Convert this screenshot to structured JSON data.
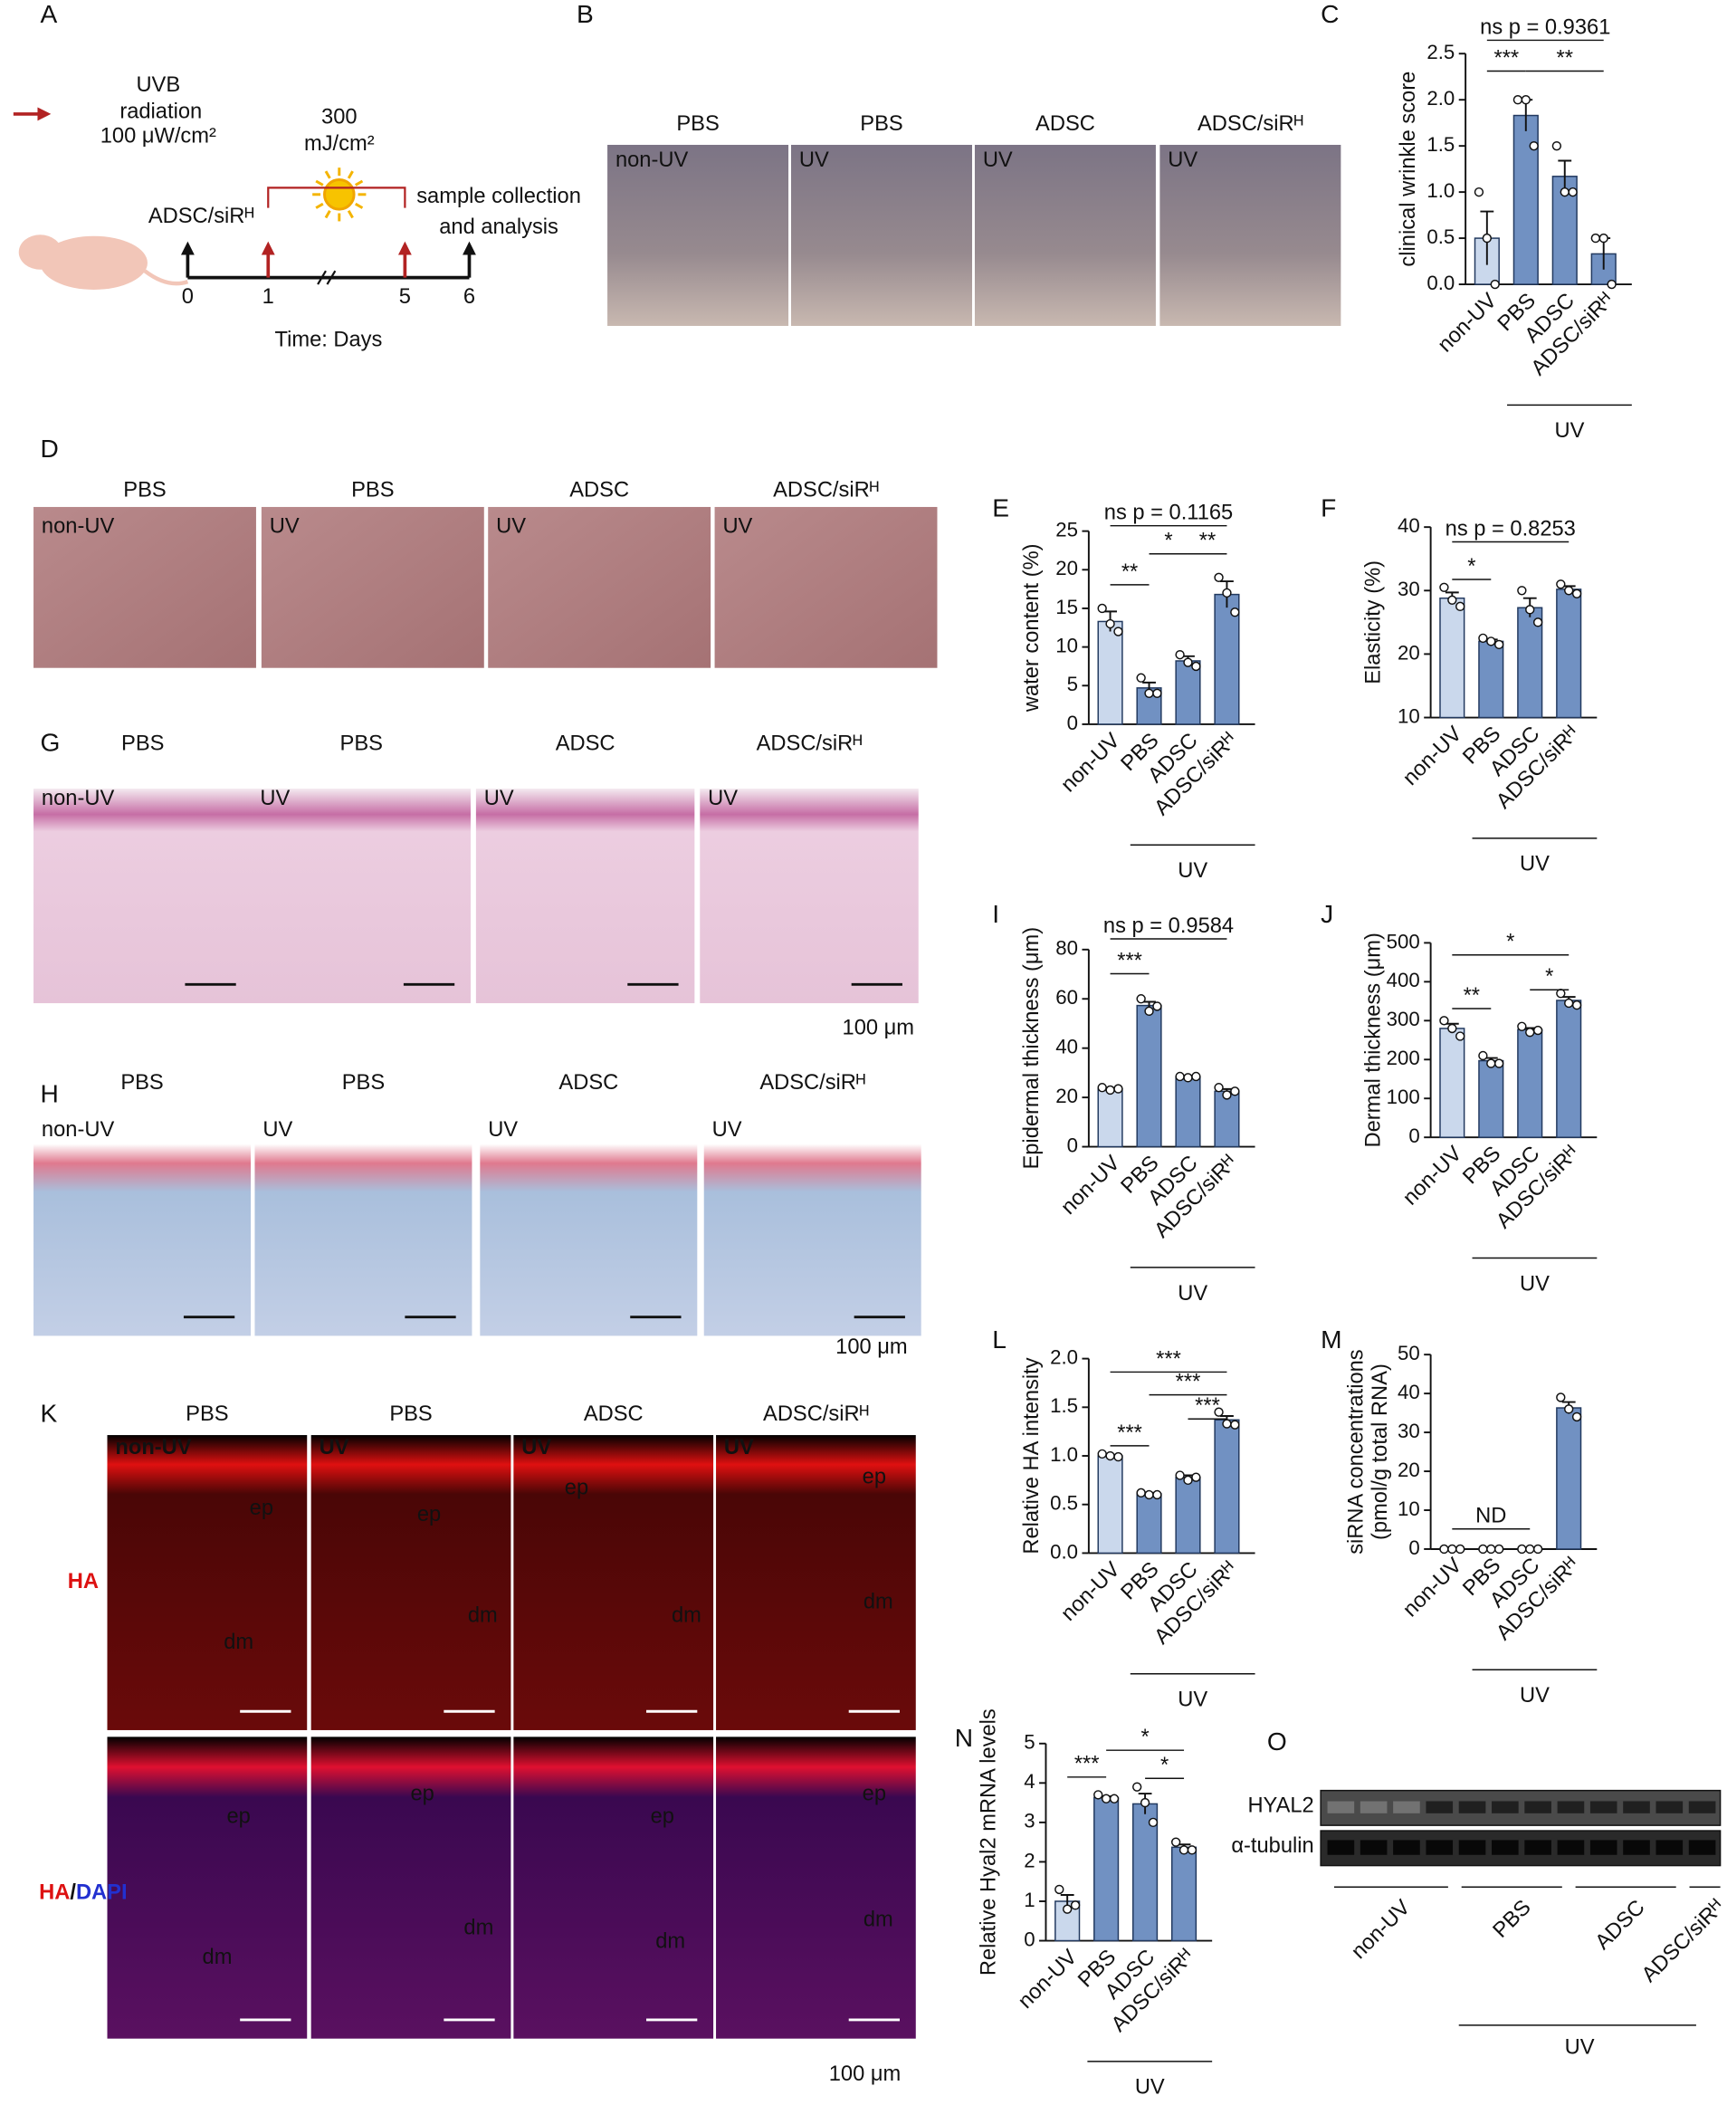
{
  "panel_letters": [
    "A",
    "B",
    "C",
    "D",
    "E",
    "F",
    "G",
    "H",
    "I",
    "J",
    "K",
    "L",
    "M",
    "N",
    "O"
  ],
  "panel_a": {
    "legend": [
      "UVB",
      "radiation",
      "100 μW/cm²"
    ],
    "dose": [
      "300",
      "mJ/cm²"
    ],
    "treatment": "ADSC/siRᴴ",
    "endpoint": [
      "sample collection",
      "and analysis"
    ],
    "days": [
      "0",
      "1",
      "5",
      "6"
    ],
    "x_label": "Time: Days"
  },
  "photo_panels": [
    {
      "headers": [
        "PBS",
        "PBS",
        "ADSC",
        "ADSC/siRᴴ"
      ],
      "tags": [
        "non-UV",
        "UV",
        "UV",
        "UV"
      ]
    },
    {
      "headers": [
        "PBS",
        "PBS",
        "ADSC",
        "ADSC/siRᴴ"
      ],
      "tags": [
        "non-UV",
        "UV",
        "UV",
        "UV"
      ]
    },
    {
      "headers": [
        "PBS",
        "PBS",
        "ADSC",
        "ADSC/siRᴴ"
      ],
      "tags": [
        "non-UV",
        "UV",
        "UV",
        "UV"
      ],
      "scale": "100 μm"
    },
    {
      "headers": [
        "PBS",
        "PBS",
        "ADSC",
        "ADSC/siRᴴ"
      ],
      "tags": [
        "non-UV",
        "UV",
        "UV",
        "UV"
      ],
      "scale": "100 μm"
    },
    {
      "headers": [
        "PBS",
        "PBS",
        "ADSC",
        "ADSC/siRᴴ"
      ],
      "tags": [
        "non-UV",
        "UV",
        "UV",
        "UV"
      ],
      "scale": "100 μm",
      "rows": [
        [
          "HA"
        ],
        [
          "HA",
          "/",
          "DAPI"
        ]
      ],
      "tissue_labels": [
        [
          [
            "ep",
            "dm"
          ],
          [
            "ep",
            "dm"
          ],
          [
            "ep",
            "dm"
          ],
          [
            "ep",
            "dm"
          ]
        ],
        [
          [
            "ep",
            "dm"
          ],
          [
            "ep",
            "dm"
          ],
          [
            "ep",
            "dm"
          ],
          [
            "ep",
            "dm"
          ]
        ]
      ]
    }
  ],
  "panel_o": {
    "rows": [
      "HYAL2",
      "α-tubulin"
    ],
    "groups": [
      "non-UV",
      "PBS",
      "ADSC",
      "ADSC/siRᴴ"
    ],
    "group_label": "UV"
  },
  "chart_data": [
    {
      "type": "bar",
      "y_label": "clinical wrinkle score",
      "categories": [
        "non-UV",
        "PBS",
        "ADSC",
        "ADSC/siRᴴ"
      ],
      "group_label": "UV",
      "values": [
        0.5,
        1.83,
        1.17,
        0.33
      ],
      "errors": [
        0.29,
        0.17,
        0.17,
        0.17
      ],
      "points": [
        [
          1,
          0.5,
          0
        ],
        [
          2,
          2,
          1.5
        ],
        [
          1.5,
          1,
          1
        ],
        [
          0.5,
          0.5,
          0
        ]
      ],
      "colors": [
        "#cad8ec",
        "#7191c2",
        "#7191c2",
        "#7191c2"
      ],
      "ylim": [
        0,
        2.5
      ],
      "yticks": [
        {
          "value": 0,
          "label": "0.0"
        },
        0.5,
        {
          "value": 1,
          "label": "1.0"
        },
        1.5,
        {
          "value": 2,
          "label": "2.0"
        },
        2.5
      ],
      "annotations": [
        "ns p = 0.9361",
        "***",
        "**"
      ]
    },
    {
      "type": "bar",
      "y_label": "water content (%)",
      "categories": [
        "non-UV",
        "PBS",
        "ADSC",
        "ADSC/siRᴴ"
      ],
      "group_label": "UV",
      "values": [
        13.3,
        4.7,
        8.2,
        16.8
      ],
      "errors": [
        1.3,
        0.7,
        0.6,
        1.7
      ],
      "points": [
        [
          15,
          13,
          12
        ],
        [
          6,
          4,
          4
        ],
        [
          9,
          8,
          7.5
        ],
        [
          19,
          17,
          14.5
        ]
      ],
      "colors": [
        "#cad8ec",
        "#7191c2",
        "#7191c2",
        "#7191c2"
      ],
      "ylim": [
        0,
        25
      ],
      "yticks": [
        0,
        5,
        10,
        15,
        20,
        25
      ],
      "annotations": [
        "ns p = 0.1165",
        "**",
        "*",
        "**"
      ]
    },
    {
      "type": "bar",
      "y_label": "Elasticity (%)",
      "categories": [
        "non-UV",
        "PBS",
        "ADSC",
        "ADSC/siRᴴ"
      ],
      "group_label": "UV",
      "values": [
        28.8,
        22,
        27.3,
        30.2
      ],
      "errors": [
        0.9,
        0.3,
        1.5,
        0.5
      ],
      "points": [
        [
          30.5,
          28.5,
          27.5
        ],
        [
          22.5,
          22,
          21.5
        ],
        [
          30,
          27,
          25
        ],
        [
          31,
          30,
          29.5
        ]
      ],
      "colors": [
        "#cad8ec",
        "#7191c2",
        "#7191c2",
        "#7191c2"
      ],
      "ylim": [
        10,
        40
      ],
      "yticks": [
        10,
        20,
        30,
        40
      ],
      "annotations": [
        "ns p = 0.8253",
        "*"
      ]
    },
    {
      "type": "bar",
      "y_label": "Epidermal thickness (μm)",
      "categories": [
        "non-UV",
        "PBS",
        "ADSC",
        "ADSC/siRᴴ"
      ],
      "group_label": "UV",
      "values": [
        23.5,
        57.3,
        28.3,
        22.5
      ],
      "errors": [
        0.3,
        1.5,
        0.2,
        0.9
      ],
      "points": [
        [
          24,
          23,
          23.5
        ],
        [
          60,
          55,
          57
        ],
        [
          28.5,
          28,
          28.5
        ],
        [
          24,
          21,
          22.5
        ]
      ],
      "colors": [
        "#cad8ec",
        "#7191c2",
        "#7191c2",
        "#7191c2"
      ],
      "ylim": [
        0,
        80
      ],
      "yticks": [
        0,
        20,
        40,
        60,
        80
      ],
      "annotations": [
        "ns p = 0.9584",
        "***"
      ]
    },
    {
      "type": "bar",
      "y_label": "Dermal thickness (μm)",
      "categories": [
        "non-UV",
        "PBS",
        "ADSC",
        "ADSC/siRᴴ"
      ],
      "group_label": "UV",
      "values": [
        280,
        197,
        277,
        352
      ],
      "errors": [
        12,
        7,
        4,
        9
      ],
      "points": [
        [
          300,
          280,
          260
        ],
        [
          210,
          190,
          190
        ],
        [
          285,
          270,
          275
        ],
        [
          370,
          345,
          340
        ]
      ],
      "colors": [
        "#cad8ec",
        "#7191c2",
        "#7191c2",
        "#7191c2"
      ],
      "ylim": [
        0,
        500
      ],
      "yticks": [
        0,
        100,
        200,
        300,
        400,
        500
      ],
      "annotations": [
        "*",
        "**",
        "*"
      ]
    },
    {
      "type": "bar",
      "y_label": "Relative HA intensity",
      "categories": [
        "non-UV",
        "PBS",
        "ADSC",
        "ADSC/siRᴴ"
      ],
      "group_label": "UV",
      "values": [
        1.0,
        0.61,
        0.78,
        1.37
      ],
      "errors": [
        0.01,
        0.01,
        0.02,
        0.04
      ],
      "points": [
        [
          1.02,
          1,
          0.99
        ],
        [
          0.62,
          0.6,
          0.6
        ],
        [
          0.8,
          0.75,
          0.78
        ],
        [
          1.45,
          1.33,
          1.32
        ]
      ],
      "colors": [
        "#cad8ec",
        "#7191c2",
        "#7191c2",
        "#7191c2"
      ],
      "ylim": [
        0,
        2
      ],
      "yticks": [
        {
          "value": 0,
          "label": "0.0"
        },
        0.5,
        {
          "value": 1,
          "label": "1.0"
        },
        1.5,
        {
          "value": 2,
          "label": "2.0"
        }
      ],
      "annotations": [
        "***",
        "***",
        "***",
        "***"
      ]
    },
    {
      "type": "bar",
      "y_label": [
        "siRNA concentrations",
        "(pmol/g total RNA)"
      ],
      "categories": [
        "non-UV",
        "PBS",
        "ADSC",
        "ADSC/siRᴴ"
      ],
      "group_label": "UV",
      "values": [
        0,
        0,
        0,
        36.3
      ],
      "errors": [
        0,
        0,
        0,
        1.5
      ],
      "points": [
        [
          0,
          0,
          0
        ],
        [
          0,
          0,
          0
        ],
        [
          0,
          0,
          0
        ],
        [
          39,
          36,
          34
        ]
      ],
      "colors": [
        "#cad8ec",
        "#7191c2",
        "#7191c2",
        "#7191c2"
      ],
      "ylim": [
        0,
        50
      ],
      "yticks": [
        0,
        10,
        20,
        30,
        40,
        50
      ],
      "annotations": [
        "ND"
      ]
    },
    {
      "type": "bar",
      "y_label": "Relative Hyal2 mRNA levels",
      "categories": [
        "non-UV",
        "PBS",
        "ADSC",
        "ADSC/siRᴴ"
      ],
      "group_label": "UV",
      "values": [
        1.0,
        3.63,
        3.47,
        2.37
      ],
      "errors": [
        0.16,
        0.03,
        0.26,
        0.07
      ],
      "points": [
        [
          1.3,
          0.8,
          0.9
        ],
        [
          3.7,
          3.6,
          3.6
        ],
        [
          3.9,
          3.5,
          3
        ],
        [
          2.5,
          2.3,
          2.3
        ]
      ],
      "colors": [
        "#cad8ec",
        "#7191c2",
        "#7191c2",
        "#7191c2"
      ],
      "ylim": [
        0,
        5
      ],
      "yticks": [
        0,
        1,
        2,
        3,
        4,
        5
      ],
      "annotations": [
        "***",
        "*",
        "*"
      ]
    }
  ]
}
